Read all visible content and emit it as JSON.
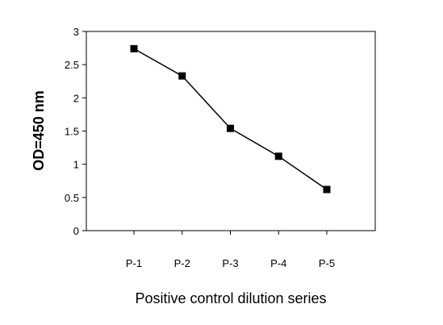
{
  "chart_data": {
    "type": "line",
    "title": "",
    "xlabel": "Positive control dilution series",
    "ylabel": "OD=450 nm",
    "categories": [
      "P-1",
      "P-2",
      "P-3",
      "P-4",
      "P-5"
    ],
    "yticks": [
      "0",
      "0.5",
      "1",
      "1.5",
      "2",
      "2.5",
      "3"
    ],
    "ylim": [
      0,
      3
    ],
    "grid": false,
    "legend": "none",
    "series": [
      {
        "values": [
          2.74,
          2.33,
          1.54,
          1.12,
          0.62
        ],
        "marker": "square",
        "color": "#000000"
      }
    ]
  }
}
